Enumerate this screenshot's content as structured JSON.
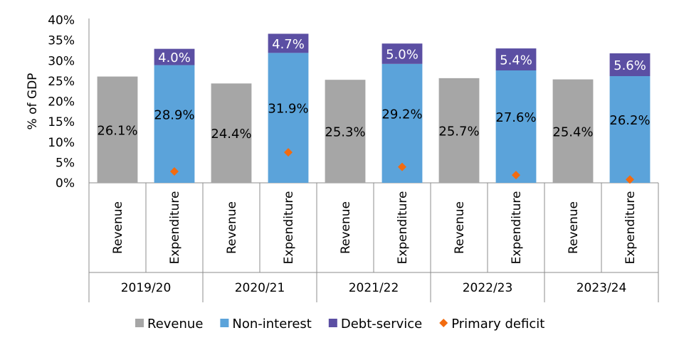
{
  "chart_data": {
    "type": "bar",
    "subtype": "stacked column with category groups",
    "ylabel": "% of GDP",
    "ylim": [
      0,
      40
    ],
    "yticks": [
      "0%",
      "5%",
      "10%",
      "15%",
      "20%",
      "25%",
      "30%",
      "35%",
      "40%"
    ],
    "grid": false,
    "legend_position": "bottom",
    "groups": [
      {
        "name": "2019/20",
        "bars": [
          {
            "category": "Revenue",
            "revenue": 26.1,
            "revenue_label": "26.1%"
          },
          {
            "category": "Expenditure",
            "non_interest": 28.9,
            "non_interest_label": "28.9%",
            "debt_service": 4.0,
            "debt_service_label": "4.0%",
            "primary_deficit": 2.8
          }
        ]
      },
      {
        "name": "2020/21",
        "bars": [
          {
            "category": "Revenue",
            "revenue": 24.4,
            "revenue_label": "24.4%"
          },
          {
            "category": "Expenditure",
            "non_interest": 31.9,
            "non_interest_label": "31.9%",
            "debt_service": 4.7,
            "debt_service_label": "4.7%",
            "primary_deficit": 7.5
          }
        ]
      },
      {
        "name": "2021/22",
        "bars": [
          {
            "category": "Revenue",
            "revenue": 25.3,
            "revenue_label": "25.3%"
          },
          {
            "category": "Expenditure",
            "non_interest": 29.2,
            "non_interest_label": "29.2%",
            "debt_service": 5.0,
            "debt_service_label": "5.0%",
            "primary_deficit": 3.9
          }
        ]
      },
      {
        "name": "2022/23",
        "bars": [
          {
            "category": "Revenue",
            "revenue": 25.7,
            "revenue_label": "25.7%"
          },
          {
            "category": "Expenditure",
            "non_interest": 27.6,
            "non_interest_label": "27.6%",
            "debt_service": 5.4,
            "debt_service_label": "5.4%",
            "primary_deficit": 1.9
          }
        ]
      },
      {
        "name": "2023/24",
        "bars": [
          {
            "category": "Revenue",
            "revenue": 25.4,
            "revenue_label": "25.4%"
          },
          {
            "category": "Expenditure",
            "non_interest": 26.2,
            "non_interest_label": "26.2%",
            "debt_service": 5.6,
            "debt_service_label": "5.6%",
            "primary_deficit": 0.8
          }
        ]
      }
    ],
    "legend": [
      {
        "name": "Revenue",
        "marker": "square",
        "color": "#A6A6A6"
      },
      {
        "name": "Non-interest",
        "marker": "square",
        "color": "#5BA3DA"
      },
      {
        "name": "Debt-service",
        "marker": "square",
        "color": "#5B4FA3"
      },
      {
        "name": "Primary deficit",
        "marker": "diamond",
        "color": "#F26B0F"
      }
    ],
    "colors": {
      "revenue": "#A6A6A6",
      "non_interest": "#5BA3DA",
      "debt_service": "#5B4FA3",
      "primary_deficit": "#F26B0F",
      "label_on_dark": "#FFFFFF",
      "label_on_light": "#000000"
    }
  }
}
